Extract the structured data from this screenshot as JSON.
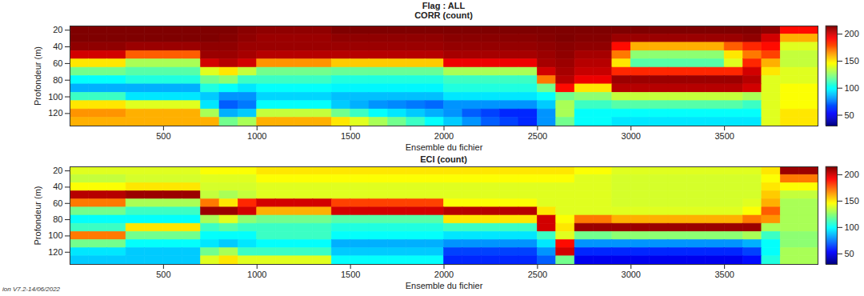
{
  "title": "Flag : ALL",
  "footer": "ion V7.2-14/06/2022",
  "chart_data": [
    {
      "type": "heatmap",
      "title": "CORR (count)",
      "x_label": "Ensemble du fichier",
      "y_label": "Profondeur (m)",
      "xlim": [
        0,
        4000
      ],
      "ylim": [
        15,
        135
      ],
      "xticks": [
        500,
        1000,
        1500,
        2000,
        2500,
        3000,
        3500
      ],
      "yticks": [
        20,
        40,
        60,
        80,
        100,
        120
      ],
      "x_edges": [
        0,
        100,
        200,
        300,
        400,
        500,
        600,
        700,
        800,
        900,
        1000,
        1100,
        1200,
        1300,
        1400,
        1500,
        1600,
        1700,
        1800,
        1900,
        2000,
        2100,
        2200,
        2300,
        2400,
        2500,
        2600,
        2700,
        2800,
        2900,
        3000,
        3100,
        3200,
        3300,
        3400,
        3500,
        3600,
        3700,
        3800,
        3900,
        4000
      ],
      "y_edges": [
        15,
        25,
        35,
        45,
        55,
        65,
        75,
        85,
        95,
        105,
        115,
        125,
        135
      ],
      "color": "jet",
      "clim": [
        30,
        215
      ],
      "cticks": [
        50,
        100,
        150,
        200
      ],
      "values": [
        [
          215,
          215,
          215,
          215,
          215,
          215,
          215,
          215,
          215,
          213,
          212,
          212,
          212,
          212,
          215,
          215,
          215,
          215,
          215,
          215,
          215,
          215,
          215,
          215,
          215,
          215,
          215,
          215,
          215,
          215,
          215,
          215,
          215,
          215,
          215,
          215,
          215,
          212,
          190,
          190
        ],
        [
          215,
          215,
          215,
          215,
          215,
          215,
          215,
          215,
          214,
          212,
          210,
          210,
          210,
          210,
          212,
          212,
          212,
          212,
          212,
          212,
          213,
          213,
          213,
          213,
          213,
          214,
          215,
          214,
          214,
          210,
          210,
          210,
          210,
          210,
          210,
          210,
          212,
          200,
          160,
          160
        ],
        [
          212,
          212,
          212,
          210,
          210,
          210,
          210,
          212,
          212,
          210,
          210,
          210,
          210,
          210,
          210,
          210,
          210,
          210,
          210,
          210,
          211,
          211,
          211,
          211,
          211,
          212,
          213,
          212,
          212,
          190,
          160,
          160,
          160,
          160,
          160,
          175,
          185,
          190,
          140,
          140
        ],
        [
          200,
          200,
          200,
          175,
          175,
          175,
          175,
          210,
          210,
          208,
          205,
          205,
          205,
          205,
          205,
          205,
          205,
          205,
          205,
          205,
          208,
          208,
          208,
          208,
          208,
          210,
          212,
          208,
          208,
          170,
          125,
          125,
          125,
          125,
          125,
          150,
          170,
          180,
          135,
          135
        ],
        [
          150,
          150,
          150,
          130,
          130,
          130,
          130,
          200,
          205,
          200,
          165,
          165,
          165,
          165,
          155,
          155,
          155,
          155,
          155,
          155,
          195,
          195,
          195,
          195,
          195,
          208,
          210,
          205,
          205,
          150,
          115,
          115,
          115,
          115,
          115,
          140,
          185,
          160,
          135,
          135
        ],
        [
          120,
          120,
          120,
          115,
          115,
          115,
          115,
          140,
          150,
          135,
          120,
          120,
          120,
          120,
          118,
          118,
          118,
          118,
          118,
          118,
          130,
          130,
          130,
          130,
          130,
          200,
          208,
          202,
          202,
          185,
          185,
          185,
          185,
          185,
          185,
          185,
          200,
          150,
          140,
          140
        ],
        [
          100,
          100,
          100,
          105,
          105,
          105,
          105,
          120,
          125,
          110,
          110,
          110,
          110,
          110,
          105,
          105,
          105,
          105,
          105,
          105,
          110,
          110,
          110,
          110,
          110,
          170,
          205,
          195,
          195,
          210,
          210,
          210,
          210,
          210,
          210,
          210,
          205,
          140,
          140,
          140
        ],
        [
          85,
          85,
          85,
          85,
          85,
          85,
          85,
          105,
          100,
          95,
          100,
          100,
          100,
          100,
          98,
          98,
          98,
          98,
          98,
          98,
          105,
          105,
          105,
          105,
          105,
          120,
          190,
          150,
          150,
          205,
          205,
          205,
          205,
          205,
          205,
          205,
          200,
          140,
          145,
          145
        ],
        [
          110,
          110,
          110,
          95,
          95,
          95,
          95,
          90,
          80,
          80,
          92,
          92,
          92,
          92,
          88,
          88,
          88,
          88,
          88,
          88,
          95,
          95,
          95,
          95,
          95,
          100,
          120,
          125,
          125,
          135,
          135,
          135,
          135,
          135,
          135,
          135,
          130,
          140,
          145,
          145
        ],
        [
          150,
          150,
          150,
          140,
          140,
          140,
          140,
          95,
          70,
          75,
          100,
          100,
          100,
          100,
          90,
          85,
          80,
          78,
          75,
          72,
          80,
          80,
          80,
          80,
          80,
          90,
          130,
          110,
          110,
          115,
          115,
          115,
          115,
          115,
          115,
          115,
          110,
          140,
          145,
          145
        ],
        [
          165,
          165,
          165,
          160,
          160,
          160,
          160,
          130,
          85,
          90,
          135,
          135,
          135,
          135,
          120,
          110,
          100,
          95,
          90,
          85,
          80,
          70,
          65,
          60,
          60,
          80,
          130,
          100,
          100,
          100,
          100,
          100,
          100,
          100,
          100,
          100,
          100,
          140,
          150,
          150
        ],
        [
          160,
          160,
          160,
          160,
          160,
          160,
          160,
          160,
          120,
          130,
          160,
          160,
          160,
          160,
          150,
          140,
          130,
          120,
          110,
          100,
          90,
          80,
          70,
          65,
          60,
          80,
          120,
          100,
          100,
          95,
          95,
          95,
          95,
          95,
          95,
          95,
          95,
          140,
          150,
          150
        ]
      ]
    },
    {
      "type": "heatmap",
      "title": "ECI (count)",
      "x_label": "Ensemble du fichier",
      "y_label": "Profondeur (m)",
      "xlim": [
        0,
        4000
      ],
      "ylim": [
        15,
        135
      ],
      "xticks": [
        500,
        1000,
        1500,
        2000,
        2500,
        3000,
        3500
      ],
      "yticks": [
        20,
        40,
        60,
        80,
        100,
        120
      ],
      "x_edges": [
        0,
        100,
        200,
        300,
        400,
        500,
        600,
        700,
        800,
        900,
        1000,
        1100,
        1200,
        1300,
        1400,
        1500,
        1600,
        1700,
        1800,
        1900,
        2000,
        2100,
        2200,
        2300,
        2400,
        2500,
        2600,
        2700,
        2800,
        2900,
        3000,
        3100,
        3200,
        3300,
        3400,
        3500,
        3600,
        3700,
        3800,
        3900,
        4000
      ],
      "y_edges": [
        15,
        25,
        35,
        45,
        55,
        65,
        75,
        85,
        95,
        105,
        115,
        125,
        135
      ],
      "color": "jet",
      "clim": [
        30,
        215
      ],
      "cticks": [
        50,
        100,
        150,
        200
      ],
      "values": [
        [
          140,
          140,
          140,
          140,
          140,
          140,
          140,
          145,
          145,
          145,
          150,
          150,
          150,
          150,
          150,
          150,
          150,
          150,
          150,
          150,
          150,
          150,
          150,
          150,
          150,
          150,
          150,
          145,
          145,
          140,
          140,
          140,
          140,
          140,
          140,
          140,
          140,
          150,
          210,
          210
        ],
        [
          135,
          135,
          135,
          138,
          138,
          138,
          138,
          140,
          140,
          140,
          145,
          145,
          145,
          145,
          145,
          145,
          145,
          145,
          145,
          145,
          145,
          145,
          145,
          145,
          145,
          145,
          145,
          140,
          140,
          138,
          138,
          138,
          138,
          138,
          138,
          138,
          138,
          145,
          170,
          170
        ],
        [
          145,
          145,
          145,
          150,
          150,
          150,
          150,
          138,
          138,
          138,
          140,
          140,
          140,
          140,
          140,
          140,
          140,
          140,
          140,
          140,
          140,
          140,
          140,
          140,
          140,
          140,
          140,
          140,
          140,
          138,
          138,
          138,
          138,
          138,
          138,
          138,
          138,
          150,
          145,
          145
        ],
        [
          205,
          205,
          205,
          210,
          210,
          210,
          210,
          135,
          130,
          135,
          140,
          140,
          140,
          140,
          140,
          140,
          140,
          140,
          140,
          140,
          140,
          140,
          140,
          140,
          140,
          140,
          140,
          140,
          140,
          138,
          138,
          138,
          138,
          138,
          138,
          138,
          138,
          155,
          135,
          135
        ],
        [
          170,
          170,
          170,
          130,
          130,
          130,
          130,
          170,
          150,
          185,
          200,
          200,
          200,
          200,
          180,
          180,
          180,
          180,
          180,
          180,
          145,
          145,
          145,
          145,
          145,
          140,
          140,
          140,
          140,
          138,
          138,
          138,
          138,
          138,
          138,
          138,
          140,
          160,
          130,
          130
        ],
        [
          120,
          120,
          120,
          110,
          110,
          110,
          110,
          210,
          210,
          200,
          160,
          160,
          160,
          160,
          200,
          200,
          200,
          200,
          200,
          200,
          205,
          205,
          205,
          205,
          205,
          150,
          140,
          140,
          140,
          140,
          140,
          140,
          140,
          140,
          140,
          140,
          145,
          175,
          130,
          130
        ],
        [
          100,
          100,
          100,
          100,
          100,
          100,
          100,
          130,
          140,
          125,
          120,
          120,
          120,
          120,
          115,
          115,
          115,
          115,
          115,
          115,
          150,
          150,
          150,
          150,
          150,
          200,
          145,
          170,
          170,
          160,
          160,
          160,
          160,
          160,
          160,
          160,
          170,
          165,
          130,
          130
        ],
        [
          110,
          110,
          110,
          150,
          150,
          150,
          150,
          110,
          115,
          110,
          110,
          110,
          110,
          110,
          105,
          105,
          105,
          105,
          105,
          105,
          110,
          110,
          110,
          110,
          110,
          200,
          150,
          210,
          210,
          210,
          210,
          210,
          210,
          210,
          210,
          210,
          210,
          130,
          130,
          130
        ],
        [
          170,
          170,
          170,
          120,
          120,
          120,
          120,
          100,
          100,
          100,
          110,
          110,
          110,
          110,
          100,
          100,
          100,
          100,
          100,
          100,
          95,
          95,
          95,
          95,
          95,
          110,
          140,
          120,
          120,
          125,
          125,
          125,
          125,
          125,
          125,
          125,
          130,
          110,
          125,
          125
        ],
        [
          120,
          120,
          120,
          100,
          100,
          100,
          100,
          95,
          90,
          95,
          100,
          100,
          100,
          100,
          85,
          85,
          85,
          85,
          85,
          85,
          80,
          80,
          80,
          80,
          80,
          95,
          190,
          80,
          80,
          80,
          80,
          80,
          80,
          80,
          80,
          80,
          85,
          100,
          125,
          125
        ],
        [
          95,
          95,
          95,
          90,
          90,
          90,
          90,
          120,
          130,
          110,
          110,
          110,
          110,
          110,
          90,
          90,
          90,
          90,
          90,
          90,
          65,
          65,
          65,
          65,
          65,
          80,
          200,
          60,
          60,
          60,
          60,
          60,
          60,
          60,
          60,
          60,
          65,
          100,
          130,
          130
        ],
        [
          90,
          90,
          90,
          90,
          90,
          90,
          90,
          140,
          150,
          140,
          140,
          140,
          140,
          140,
          100,
          100,
          100,
          100,
          100,
          100,
          60,
          60,
          60,
          60,
          60,
          70,
          120,
          50,
          50,
          50,
          50,
          50,
          50,
          50,
          50,
          50,
          55,
          105,
          130,
          130
        ]
      ]
    }
  ]
}
